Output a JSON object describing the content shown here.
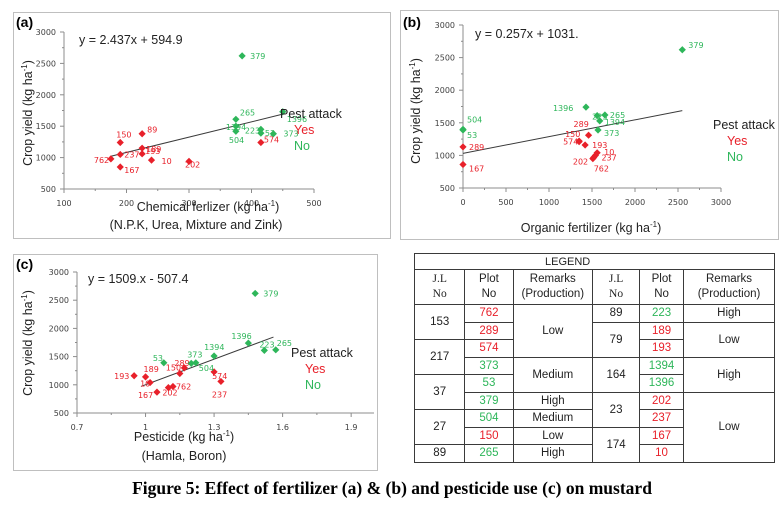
{
  "chart_data": [
    {
      "id": "a",
      "type": "scatter",
      "panel_label": "(a)",
      "equation": "y = 2.437x + 594.9",
      "trendline": {
        "slope": 2.437,
        "intercept": 594.9,
        "x_range": [
          175,
          450
        ]
      },
      "xlabel": "Chemical ferlizer (kg ha",
      "xlabel_sup": "-1",
      "xlabel_close": ")",
      "xlabel2": "(N.P.K, Urea, Mixture and Zink)",
      "ylabel": "Crop yield (kg ha",
      "ylabel_sup": "-1",
      "ylabel_close": ")",
      "xlim": [
        100,
        500
      ],
      "ylim": [
        500,
        3000
      ],
      "xticks": [
        100,
        200,
        300,
        400,
        500
      ],
      "yticks": [
        500,
        1000,
        1500,
        2000,
        2500,
        3000
      ],
      "legend": {
        "title": "Pest attack",
        "items": [
          {
            "label": "Yes",
            "color": "#e8202a"
          },
          {
            "label": "No",
            "color": "#2eb65a"
          }
        ],
        "position": "right"
      },
      "points": [
        {
          "label": "762",
          "x": 175,
          "y": 980,
          "pest": "yes"
        },
        {
          "label": "167",
          "x": 190,
          "y": 850,
          "pest": "yes"
        },
        {
          "label": "237",
          "x": 190,
          "y": 1050,
          "pest": "yes"
        },
        {
          "label": "150",
          "x": 190,
          "y": 1240,
          "pest": "yes"
        },
        {
          "label": "189",
          "x": 225,
          "y": 1150,
          "pest": "yes"
        },
        {
          "label": "89",
          "x": 225,
          "y": 1380,
          "pest": "yes"
        },
        {
          "label": "193",
          "x": 225,
          "y": 1060,
          "pest": "yes"
        },
        {
          "label": "10",
          "x": 240,
          "y": 960,
          "pest": "yes"
        },
        {
          "label": "202",
          "x": 300,
          "y": 940,
          "pest": "yes"
        },
        {
          "label": "574",
          "x": 415,
          "y": 1240,
          "pest": "yes"
        },
        {
          "label": "379",
          "x": 385,
          "y": 2620,
          "pest": "no"
        },
        {
          "label": "265",
          "x": 375,
          "y": 1610,
          "pest": "no"
        },
        {
          "label": "1394",
          "x": 375,
          "y": 1500,
          "pest": "no"
        },
        {
          "label": "504",
          "x": 375,
          "y": 1420,
          "pest": "no"
        },
        {
          "label": "223",
          "x": 415,
          "y": 1450,
          "pest": "no"
        },
        {
          "label": "53",
          "x": 415,
          "y": 1390,
          "pest": "no"
        },
        {
          "label": "373",
          "x": 435,
          "y": 1380,
          "pest": "no"
        },
        {
          "label": "1396",
          "x": 450,
          "y": 1730,
          "pest": "no"
        }
      ]
    },
    {
      "id": "b",
      "type": "scatter",
      "panel_label": "(b)",
      "equation": "y = 0.257x + 1031.",
      "trendline": {
        "slope": 0.257,
        "intercept": 1031,
        "x_range": [
          0,
          2550
        ]
      },
      "xlabel": "Organic fertilizer  (kg ha",
      "xlabel_sup": "-1",
      "xlabel_close": ")",
      "ylabel": "Crop yield (kg ha",
      "ylabel_sup": "-1",
      "ylabel_close": ")",
      "xlim": [
        0,
        3000
      ],
      "ylim": [
        500,
        3000
      ],
      "xticks": [
        0,
        500,
        1000,
        1500,
        2000,
        2500,
        3000
      ],
      "yticks": [
        500,
        1000,
        1500,
        2000,
        2500,
        3000
      ],
      "legend": {
        "title": "Pest attack",
        "items": [
          {
            "label": "Yes",
            "color": "#e8202a"
          },
          {
            "label": "No",
            "color": "#2eb65a"
          }
        ],
        "position": "right"
      },
      "points": [
        {
          "label": "504",
          "x": 0,
          "y": 1400,
          "pest": "no"
        },
        {
          "label": "53",
          "x": 0,
          "y": 1390,
          "pest": "no"
        },
        {
          "label": "289",
          "x": 0,
          "y": 1130,
          "pest": "yes"
        },
        {
          "label": "167",
          "x": 0,
          "y": 860,
          "pest": "yes"
        },
        {
          "label": "1396",
          "x": 1430,
          "y": 1740,
          "pest": "no"
        },
        {
          "label": "223",
          "x": 1560,
          "y": 1610,
          "pest": "no"
        },
        {
          "label": "265",
          "x": 1650,
          "y": 1620,
          "pest": "no"
        },
        {
          "label": "1394",
          "x": 1590,
          "y": 1530,
          "pest": "no"
        },
        {
          "label": "373",
          "x": 1570,
          "y": 1390,
          "pest": "no"
        },
        {
          "label": "379",
          "x": 2550,
          "y": 2620,
          "pest": "no"
        },
        {
          "label": "289",
          "x": 1460,
          "y": 1310,
          "pest": "yes"
        },
        {
          "label": "150",
          "x": 1350,
          "y": 1220,
          "pest": "yes"
        },
        {
          "label": "574",
          "x": 1350,
          "y": 1210,
          "pest": "yes"
        },
        {
          "label": "193",
          "x": 1420,
          "y": 1160,
          "pest": "yes"
        },
        {
          "label": "10",
          "x": 1560,
          "y": 1040,
          "pest": "yes"
        },
        {
          "label": "237",
          "x": 1540,
          "y": 1000,
          "pest": "yes"
        },
        {
          "label": "202",
          "x": 1510,
          "y": 950,
          "pest": "yes"
        },
        {
          "label": "762",
          "x": 1520,
          "y": 970,
          "pest": "yes"
        }
      ]
    },
    {
      "id": "c",
      "type": "scatter",
      "panel_label": "(c)",
      "equation": "y = 1509.x - 507.4",
      "trendline": {
        "slope": 1509,
        "intercept": -507.4,
        "x_range": [
          0.98,
          1.56
        ]
      },
      "xlabel": "Pesticide (kg ha",
      "xlabel_sup": "-1",
      "xlabel_close": ")",
      "xlabel2": "(Hamla, Boron)",
      "ylabel": "Crop yield (kg ha",
      "ylabel_sup": "-1",
      "ylabel_close": ")",
      "xlim": [
        0.7,
        2.0
      ],
      "ylim": [
        500,
        3000
      ],
      "xticks": [
        0.7,
        1,
        1.3,
        1.6,
        1.9
      ],
      "yticks": [
        500,
        1000,
        1500,
        2000,
        2500,
        3000
      ],
      "legend": {
        "title": "Pest attack",
        "items": [
          {
            "label": "Yes",
            "color": "#e8202a"
          },
          {
            "label": "No",
            "color": "#2eb65a"
          }
        ],
        "position": "right"
      },
      "points": [
        {
          "label": "193",
          "x": 0.95,
          "y": 1160,
          "pest": "yes"
        },
        {
          "label": "189",
          "x": 1.0,
          "y": 1140,
          "pest": "yes"
        },
        {
          "label": "10",
          "x": 1.02,
          "y": 1040,
          "pest": "yes"
        },
        {
          "label": "167",
          "x": 1.05,
          "y": 870,
          "pest": "yes"
        },
        {
          "label": "202",
          "x": 1.1,
          "y": 950,
          "pest": "yes"
        },
        {
          "label": "762",
          "x": 1.12,
          "y": 970,
          "pest": "yes"
        },
        {
          "label": "150",
          "x": 1.15,
          "y": 1200,
          "pest": "yes"
        },
        {
          "label": "289",
          "x": 1.17,
          "y": 1300,
          "pest": "yes"
        },
        {
          "label": "574",
          "x": 1.3,
          "y": 1230,
          "pest": "yes"
        },
        {
          "label": "237",
          "x": 1.33,
          "y": 1060,
          "pest": "yes"
        },
        {
          "label": "53",
          "x": 1.08,
          "y": 1390,
          "pest": "no"
        },
        {
          "label": "373",
          "x": 1.2,
          "y": 1380,
          "pest": "no"
        },
        {
          "label": "504",
          "x": 1.22,
          "y": 1390,
          "pest": "no"
        },
        {
          "label": "1394",
          "x": 1.3,
          "y": 1510,
          "pest": "no"
        },
        {
          "label": "1396",
          "x": 1.45,
          "y": 1740,
          "pest": "no"
        },
        {
          "label": "223",
          "x": 1.52,
          "y": 1610,
          "pest": "no"
        },
        {
          "label": "265",
          "x": 1.57,
          "y": 1620,
          "pest": "no"
        },
        {
          "label": "379",
          "x": 1.48,
          "y": 2620,
          "pest": "no"
        }
      ]
    }
  ],
  "legend_table": {
    "title": "LEGEND",
    "headers": [
      "J.L No",
      "Plot No",
      "Remarks (Production)",
      "J.L No",
      "Plot No",
      "Remarks (Production)"
    ],
    "header_lines": [
      [
        "J.L",
        "No"
      ],
      [
        "Plot",
        "No"
      ],
      [
        "Remarks",
        "(Production)"
      ]
    ],
    "left": [
      {
        "jl": "153",
        "plots": [
          {
            "no": "762",
            "color": "red"
          },
          {
            "no": "289",
            "color": "red"
          }
        ]
      },
      {
        "jl": "217",
        "plots": [
          {
            "no": "574",
            "color": "red"
          },
          {
            "no": "373",
            "color": "green"
          }
        ]
      },
      {
        "jl": "37",
        "plots": [
          {
            "no": "53",
            "color": "green"
          },
          {
            "no": "379",
            "color": "green"
          }
        ]
      },
      {
        "jl": "27",
        "plots": [
          {
            "no": "504",
            "color": "green"
          },
          {
            "no": "150",
            "color": "red"
          }
        ]
      },
      {
        "jl": "89",
        "plots": [
          {
            "no": "265",
            "color": "green"
          }
        ]
      }
    ],
    "left_remarks": [
      "Low",
      "Medium",
      "High",
      "Medium",
      "Low",
      "High"
    ],
    "right": [
      {
        "jl": "89",
        "plots": [
          {
            "no": "223",
            "color": "green"
          }
        ]
      },
      {
        "jl": "79",
        "plots": [
          {
            "no": "189",
            "color": "red"
          },
          {
            "no": "193",
            "color": "red"
          }
        ]
      },
      {
        "jl": "164",
        "plots": [
          {
            "no": "1394",
            "color": "green"
          },
          {
            "no": "1396",
            "color": "green"
          }
        ]
      },
      {
        "jl": "23",
        "plots": [
          {
            "no": "202",
            "color": "red"
          },
          {
            "no": "237",
            "color": "red"
          }
        ]
      },
      {
        "jl": "174",
        "plots": [
          {
            "no": "167",
            "color": "red"
          },
          {
            "no": "10",
            "color": "red"
          }
        ]
      }
    ],
    "right_remarks": [
      "High",
      "Low",
      "High",
      "Low"
    ]
  },
  "caption": "Figure 5: Effect of fertilizer (a) & (b) and pesticide use (c) on mustard",
  "colors": {
    "yes": "#e8202a",
    "no": "#2eb65a",
    "trend": "#3a3a3a",
    "axis": "#8c8c8c"
  }
}
